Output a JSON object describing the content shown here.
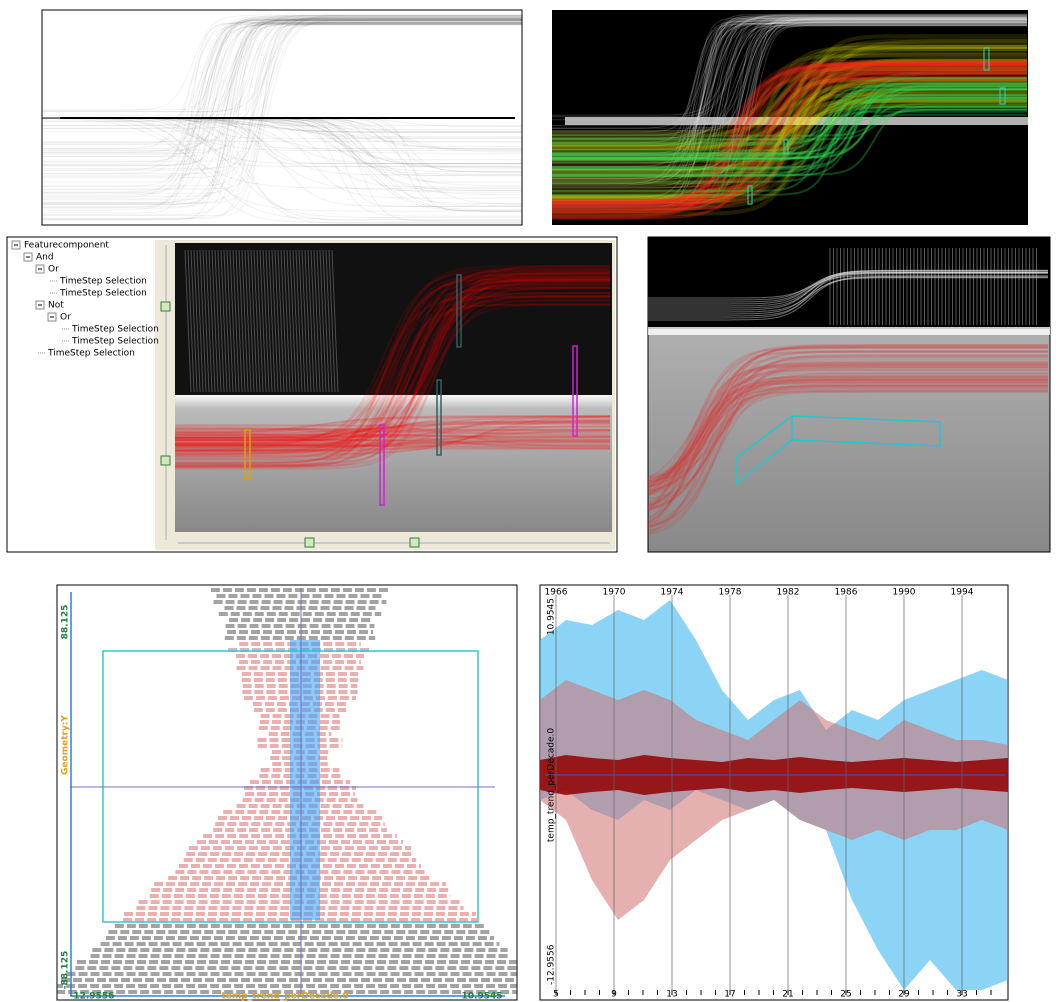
{
  "tree": {
    "label": "Featurecomponent",
    "children": [
      {
        "label": "And",
        "children": [
          {
            "label": "Or",
            "children": [
              {
                "label": "TimeStep Selection"
              },
              {
                "label": "TimeStep Selection"
              }
            ]
          },
          {
            "label": "Not",
            "children": [
              {
                "label": "Or",
                "children": [
                  {
                    "label": "TimeStep Selection"
                  },
                  {
                    "label": "TimeStep Selection"
                  }
                ]
              }
            ]
          },
          {
            "label": "TimeStep Selection"
          }
        ]
      }
    ]
  },
  "scatter_panel": {
    "y_axis_label": "Geometry:Y",
    "x_axis_label": "temp_trend_perDecade.0",
    "y_max": "88.125",
    "y_min": "-88.125",
    "x_min": "-12.9556",
    "x_max": "10.9545"
  },
  "parallel_panel": {
    "axis_label": "temp_trend_perDecade.0",
    "y_max": "10.9545",
    "y_min": "-12.9556",
    "top_labels": [
      "1966",
      "1970",
      "1974",
      "1978",
      "1982",
      "1986",
      "1990",
      "1994"
    ],
    "bottom_labels": [
      "5",
      "9",
      "13",
      "17",
      "21",
      "25",
      "29",
      "33"
    ]
  }
}
